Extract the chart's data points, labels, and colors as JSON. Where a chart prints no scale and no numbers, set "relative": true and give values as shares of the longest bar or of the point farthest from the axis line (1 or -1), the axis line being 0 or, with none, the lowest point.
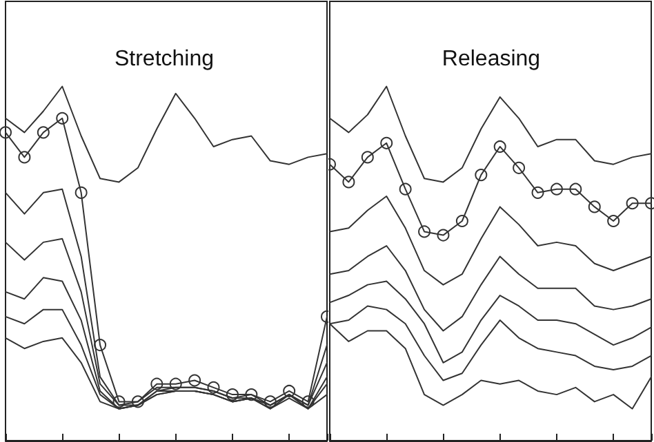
{
  "chart_data": [
    {
      "type": "line",
      "title": "Stretching",
      "relative": true,
      "tick_labels": false,
      "grid": false,
      "marker": "none",
      "line_style": "solid",
      "categories": [
        null,
        null,
        null,
        null,
        null,
        null,
        null,
        null,
        null,
        null,
        null,
        null,
        null,
        null,
        null,
        null,
        null,
        null
      ],
      "series": [
        {
          "color": "#333333",
          "values": [
            0.91,
            0.87,
            0.93,
            1.0,
            0.86,
            0.74,
            0.73,
            0.77,
            0.88,
            0.98,
            0.91,
            0.83,
            0.85,
            0.86,
            0.79,
            0.78,
            0.8,
            0.81
          ]
        },
        {
          "color": "#333333",
          "marker": "circle",
          "values": [
            0.87,
            0.8,
            0.87,
            0.91,
            0.7,
            0.27,
            0.11,
            0.11,
            0.16,
            0.16,
            0.17,
            0.15,
            0.13,
            0.13,
            0.11,
            0.14,
            0.11,
            0.35
          ]
        },
        {
          "color": "#333333",
          "values": [
            0.7,
            0.64,
            0.7,
            0.71,
            0.52,
            0.18,
            0.1,
            0.11,
            0.15,
            0.15,
            0.15,
            0.14,
            0.12,
            0.13,
            0.1,
            0.13,
            0.1,
            0.27
          ]
        },
        {
          "color": "#333333",
          "values": [
            0.56,
            0.51,
            0.56,
            0.57,
            0.42,
            0.16,
            0.1,
            0.1,
            0.14,
            0.15,
            0.15,
            0.14,
            0.12,
            0.12,
            0.1,
            0.13,
            0.1,
            0.22
          ]
        },
        {
          "color": "#333333",
          "values": [
            0.42,
            0.4,
            0.46,
            0.45,
            0.34,
            0.14,
            0.09,
            0.1,
            0.14,
            0.14,
            0.14,
            0.13,
            0.11,
            0.12,
            0.1,
            0.13,
            0.09,
            0.18
          ]
        },
        {
          "color": "#333333",
          "values": [
            0.35,
            0.33,
            0.37,
            0.37,
            0.27,
            0.13,
            0.09,
            0.1,
            0.13,
            0.14,
            0.14,
            0.13,
            0.11,
            0.12,
            0.09,
            0.13,
            0.09,
            0.16
          ]
        },
        {
          "color": "#333333",
          "values": [
            0.29,
            0.26,
            0.28,
            0.29,
            0.22,
            0.11,
            0.09,
            0.1,
            0.13,
            0.14,
            0.14,
            0.13,
            0.11,
            0.12,
            0.09,
            0.12,
            0.09,
            0.13
          ]
        }
      ]
    },
    {
      "type": "line",
      "title": "Releasing",
      "relative": true,
      "tick_labels": false,
      "grid": false,
      "marker": "none",
      "line_style": "solid",
      "categories": [
        null,
        null,
        null,
        null,
        null,
        null,
        null,
        null,
        null,
        null,
        null,
        null,
        null,
        null,
        null,
        null,
        null,
        null
      ],
      "series": [
        {
          "color": "#333333",
          "values": [
            0.91,
            0.87,
            0.92,
            1.0,
            0.86,
            0.74,
            0.73,
            0.77,
            0.88,
            0.97,
            0.91,
            0.83,
            0.85,
            0.85,
            0.79,
            0.78,
            0.8,
            0.81
          ]
        },
        {
          "color": "#333333",
          "marker": "circle",
          "values": [
            0.78,
            0.73,
            0.8,
            0.84,
            0.71,
            0.59,
            0.58,
            0.62,
            0.75,
            0.83,
            0.77,
            0.7,
            0.71,
            0.71,
            0.66,
            0.62,
            0.67,
            0.67
          ]
        },
        {
          "color": "#333333",
          "values": [
            0.59,
            0.6,
            0.65,
            0.69,
            0.6,
            0.48,
            0.44,
            0.47,
            0.57,
            0.66,
            0.61,
            0.55,
            0.56,
            0.55,
            0.5,
            0.48,
            0.5,
            0.52
          ]
        },
        {
          "color": "#333333",
          "values": [
            0.47,
            0.48,
            0.52,
            0.55,
            0.48,
            0.37,
            0.31,
            0.35,
            0.44,
            0.52,
            0.47,
            0.43,
            0.43,
            0.43,
            0.38,
            0.37,
            0.38,
            0.4
          ]
        },
        {
          "color": "#333333",
          "values": [
            0.39,
            0.41,
            0.44,
            0.45,
            0.4,
            0.33,
            0.22,
            0.25,
            0.34,
            0.41,
            0.38,
            0.34,
            0.34,
            0.33,
            0.3,
            0.27,
            0.29,
            0.32
          ]
        },
        {
          "color": "#333333",
          "values": [
            0.33,
            0.34,
            0.38,
            0.37,
            0.33,
            0.24,
            0.17,
            0.19,
            0.27,
            0.34,
            0.29,
            0.26,
            0.25,
            0.24,
            0.21,
            0.2,
            0.21,
            0.24
          ]
        },
        {
          "color": "#333333",
          "values": [
            0.33,
            0.28,
            0.31,
            0.31,
            0.26,
            0.13,
            0.1,
            0.13,
            0.17,
            0.16,
            0.17,
            0.14,
            0.13,
            0.15,
            0.11,
            0.13,
            0.09,
            0.18
          ]
        }
      ]
    }
  ]
}
